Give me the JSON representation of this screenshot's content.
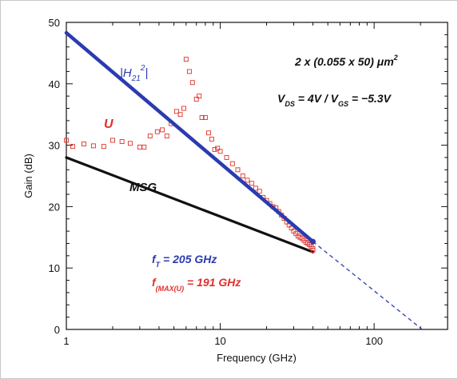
{
  "chart_data": {
    "type": "scatter",
    "xlabel": "Frequency  (GHz)",
    "ylabel": "Gain  (dB)",
    "xscale": "log",
    "xlim": [
      1,
      300
    ],
    "ylim": [
      0,
      50
    ],
    "x_ticks": [
      "1",
      "10",
      "100"
    ],
    "y_ticks": [
      "0",
      "10",
      "20",
      "30",
      "40",
      "50"
    ],
    "grid": false,
    "series": [
      {
        "name": "|H21|²",
        "kind": "line",
        "color": "#2b3bb0",
        "x": [
          1,
          40
        ],
        "y": [
          48.3,
          14.3
        ]
      },
      {
        "name": "|H21|² extrapolation",
        "kind": "dashed-line",
        "color": "#2b3bb0",
        "x": [
          40,
          205
        ],
        "y": [
          14.3,
          0
        ]
      },
      {
        "name": "MSG",
        "kind": "line",
        "color": "#111111",
        "x": [
          1,
          40
        ],
        "y": [
          28.0,
          12.6
        ]
      },
      {
        "name": "U",
        "kind": "markers",
        "color": "#e0302a",
        "x": [
          1.0,
          1.1,
          1.3,
          1.5,
          1.75,
          2.0,
          2.3,
          2.6,
          3.0,
          3.2,
          3.5,
          3.9,
          4.2,
          4.5,
          4.8,
          5.2,
          5.5,
          5.8,
          6.0,
          6.3,
          6.6,
          7.0,
          7.3,
          7.6,
          8.0,
          8.4,
          8.8,
          9.2,
          9.6,
          10,
          11,
          12,
          13,
          14,
          15,
          16,
          17,
          18,
          19,
          20,
          21,
          22,
          23,
          24,
          25,
          26,
          27,
          28,
          29,
          30,
          31,
          32,
          33,
          34,
          35,
          36,
          37,
          38,
          39,
          40,
          40
        ],
        "y": [
          30.8,
          29.8,
          30.2,
          29.9,
          29.8,
          30.8,
          30.6,
          30.3,
          29.7,
          29.7,
          31.5,
          32.2,
          32.5,
          31.5,
          33.5,
          35.5,
          35.0,
          36.0,
          44.0,
          42.0,
          40.2,
          37.5,
          38.0,
          34.5,
          34.5,
          32.0,
          31.0,
          29.3,
          29.5,
          29.0,
          28.0,
          27.0,
          26.0,
          25.0,
          24.3,
          23.8,
          23.0,
          22.5,
          21.5,
          21.0,
          20.5,
          20.0,
          19.8,
          19.2,
          18.6,
          18.1,
          17.5,
          17.0,
          16.5,
          16.0,
          15.6,
          15.2,
          15.0,
          14.8,
          14.5,
          14.2,
          14.0,
          13.8,
          13.5,
          13.2,
          12.9
        ]
      }
    ],
    "annotations": {
      "h21_label": {
        "pre": "|H",
        "sub": "21",
        "sup": "2",
        "post": "|"
      },
      "u_label": "U",
      "msg_label": "MSG",
      "geometry": {
        "pre": "2 x (0.055 x 50) ",
        "unit": "μm",
        "sup": "2"
      },
      "bias": {
        "v1": "V",
        "v1_sub": "DS",
        "mid": " = 4V / ",
        "v2": "V",
        "v2_sub": "GS",
        "post": " = −5.3V"
      },
      "ft": {
        "f": "f",
        "sub": "T",
        "value": " = 205 GHz"
      },
      "fmax": {
        "f": "f",
        "sub": "(MAX(U)",
        "value": " = 191 GHz"
      }
    },
    "colors": {
      "blue": "#2b3bb0",
      "red": "#e0302a",
      "black": "#111111"
    }
  }
}
